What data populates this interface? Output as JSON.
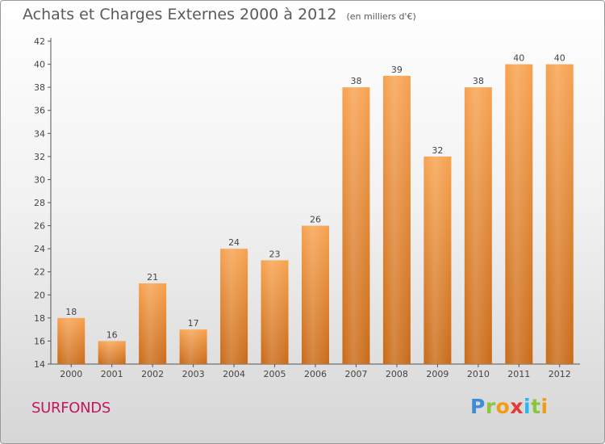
{
  "header": {
    "title": "Achats et Charges Externes 2000 à 2012",
    "subtitle": "(en milliers d'€)"
  },
  "commune": "SURFONDS",
  "logo": {
    "letters": [
      "P",
      "r",
      "o",
      "x",
      "i",
      "t",
      "i"
    ],
    "colors": [
      "#3a8dd6",
      "#8cc63f",
      "#f39c12",
      "#e53935",
      "#29b6f6",
      "#8cc63f",
      "#f39c12"
    ]
  },
  "colors": {
    "bar_top": "#f7a24f",
    "bar_bottom": "#c96a18",
    "axis": "#555555"
  },
  "chart_data": {
    "type": "bar",
    "categories": [
      "2000",
      "2001",
      "2002",
      "2003",
      "2004",
      "2005",
      "2006",
      "2007",
      "2008",
      "2009",
      "2010",
      "2011",
      "2012"
    ],
    "values": [
      18,
      16,
      21,
      17,
      24,
      23,
      26,
      38,
      39,
      32,
      38,
      40,
      40
    ],
    "title": "Achats et Charges Externes 2000 à 2012",
    "subtitle": "(en milliers d'€)",
    "ylim": [
      14,
      42
    ],
    "yticks": [
      14,
      16,
      18,
      20,
      22,
      24,
      26,
      28,
      30,
      32,
      34,
      36,
      38,
      40,
      42
    ],
    "grid": false,
    "data_labels": true
  }
}
